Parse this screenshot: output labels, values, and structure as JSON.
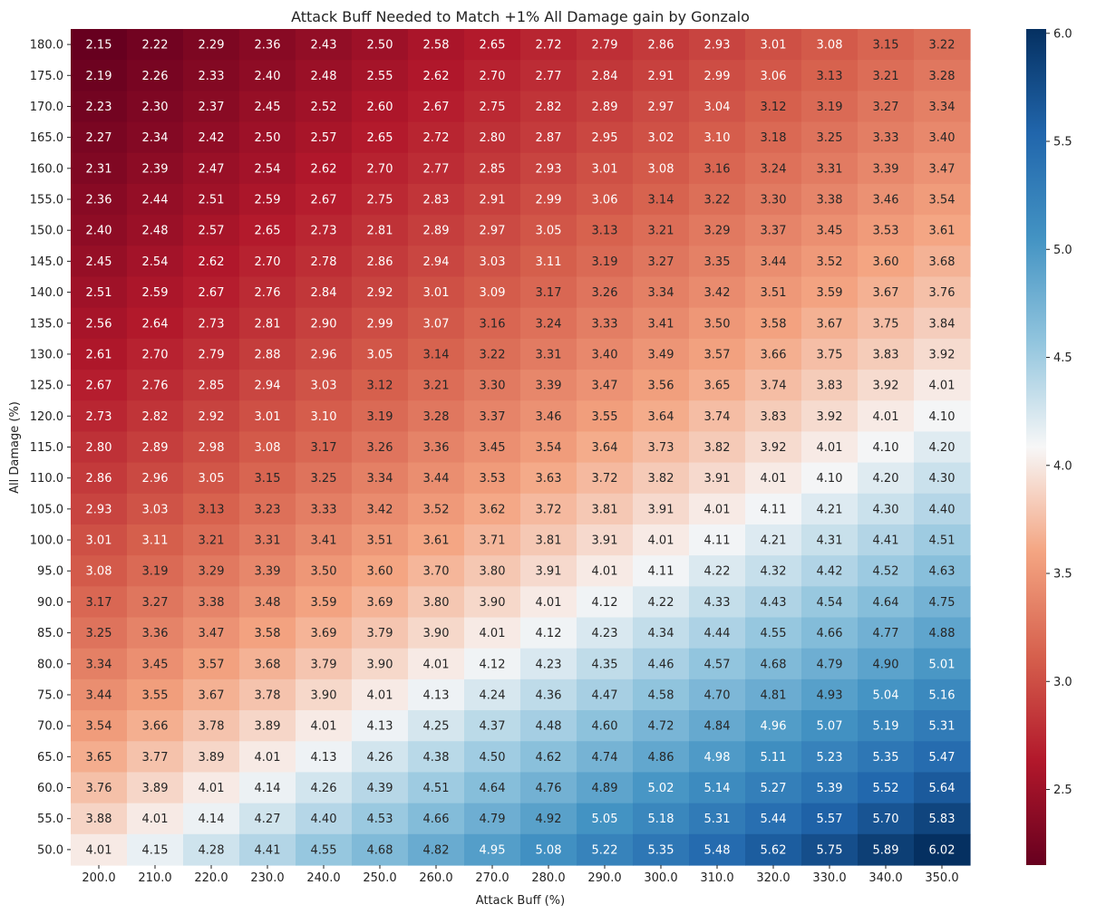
{
  "chart_data": {
    "type": "heatmap",
    "title": "Attack Buff Needed to Match +1% All Damage gain by Gonzalo",
    "xlabel": "Attack Buff (%)",
    "ylabel": "All Damage (%)",
    "x_categories": [
      "200.0",
      "210.0",
      "220.0",
      "230.0",
      "240.0",
      "250.0",
      "260.0",
      "270.0",
      "280.0",
      "290.0",
      "300.0",
      "310.0",
      "320.0",
      "330.0",
      "340.0",
      "350.0"
    ],
    "y_categories": [
      "180.0",
      "175.0",
      "170.0",
      "165.0",
      "160.0",
      "155.0",
      "150.0",
      "145.0",
      "140.0",
      "135.0",
      "130.0",
      "125.0",
      "120.0",
      "115.0",
      "110.0",
      "105.0",
      "100.0",
      "95.0",
      "90.0",
      "85.0",
      "80.0",
      "75.0",
      "70.0",
      "65.0",
      "60.0",
      "55.0",
      "50.0"
    ],
    "values": [
      [
        2.15,
        2.22,
        2.29,
        2.36,
        2.43,
        2.5,
        2.58,
        2.65,
        2.72,
        2.79,
        2.86,
        2.93,
        3.01,
        3.08,
        3.15,
        3.22
      ],
      [
        2.19,
        2.26,
        2.33,
        2.4,
        2.48,
        2.55,
        2.62,
        2.7,
        2.77,
        2.84,
        2.91,
        2.99,
        3.06,
        3.13,
        3.21,
        3.28
      ],
      [
        2.23,
        2.3,
        2.37,
        2.45,
        2.52,
        2.6,
        2.67,
        2.75,
        2.82,
        2.89,
        2.97,
        3.04,
        3.12,
        3.19,
        3.27,
        3.34
      ],
      [
        2.27,
        2.34,
        2.42,
        2.5,
        2.57,
        2.65,
        2.72,
        2.8,
        2.87,
        2.95,
        3.02,
        3.1,
        3.18,
        3.25,
        3.33,
        3.4
      ],
      [
        2.31,
        2.39,
        2.47,
        2.54,
        2.62,
        2.7,
        2.77,
        2.85,
        2.93,
        3.01,
        3.08,
        3.16,
        3.24,
        3.31,
        3.39,
        3.47
      ],
      [
        2.36,
        2.44,
        2.51,
        2.59,
        2.67,
        2.75,
        2.83,
        2.91,
        2.99,
        3.06,
        3.14,
        3.22,
        3.3,
        3.38,
        3.46,
        3.54
      ],
      [
        2.4,
        2.48,
        2.57,
        2.65,
        2.73,
        2.81,
        2.89,
        2.97,
        3.05,
        3.13,
        3.21,
        3.29,
        3.37,
        3.45,
        3.53,
        3.61
      ],
      [
        2.45,
        2.54,
        2.62,
        2.7,
        2.78,
        2.86,
        2.94,
        3.03,
        3.11,
        3.19,
        3.27,
        3.35,
        3.44,
        3.52,
        3.6,
        3.68
      ],
      [
        2.51,
        2.59,
        2.67,
        2.76,
        2.84,
        2.92,
        3.01,
        3.09,
        3.17,
        3.26,
        3.34,
        3.42,
        3.51,
        3.59,
        3.67,
        3.76
      ],
      [
        2.56,
        2.64,
        2.73,
        2.81,
        2.9,
        2.99,
        3.07,
        3.16,
        3.24,
        3.33,
        3.41,
        3.5,
        3.58,
        3.67,
        3.75,
        3.84
      ],
      [
        2.61,
        2.7,
        2.79,
        2.88,
        2.96,
        3.05,
        3.14,
        3.22,
        3.31,
        3.4,
        3.49,
        3.57,
        3.66,
        3.75,
        3.83,
        3.92
      ],
      [
        2.67,
        2.76,
        2.85,
        2.94,
        3.03,
        3.12,
        3.21,
        3.3,
        3.39,
        3.47,
        3.56,
        3.65,
        3.74,
        3.83,
        3.92,
        4.01
      ],
      [
        2.73,
        2.82,
        2.92,
        3.01,
        3.1,
        3.19,
        3.28,
        3.37,
        3.46,
        3.55,
        3.64,
        3.74,
        3.83,
        3.92,
        4.01,
        4.1
      ],
      [
        2.8,
        2.89,
        2.98,
        3.08,
        3.17,
        3.26,
        3.36,
        3.45,
        3.54,
        3.64,
        3.73,
        3.82,
        3.92,
        4.01,
        4.1,
        4.2
      ],
      [
        2.86,
        2.96,
        3.05,
        3.15,
        3.25,
        3.34,
        3.44,
        3.53,
        3.63,
        3.72,
        3.82,
        3.91,
        4.01,
        4.1,
        4.2,
        4.3
      ],
      [
        2.93,
        3.03,
        3.13,
        3.23,
        3.33,
        3.42,
        3.52,
        3.62,
        3.72,
        3.81,
        3.91,
        4.01,
        4.11,
        4.21,
        4.3,
        4.4
      ],
      [
        3.01,
        3.11,
        3.21,
        3.31,
        3.41,
        3.51,
        3.61,
        3.71,
        3.81,
        3.91,
        4.01,
        4.11,
        4.21,
        4.31,
        4.41,
        4.51
      ],
      [
        3.08,
        3.19,
        3.29,
        3.39,
        3.5,
        3.6,
        3.7,
        3.8,
        3.91,
        4.01,
        4.11,
        4.22,
        4.32,
        4.42,
        4.52,
        4.63
      ],
      [
        3.17,
        3.27,
        3.38,
        3.48,
        3.59,
        3.69,
        3.8,
        3.9,
        4.01,
        4.12,
        4.22,
        4.33,
        4.43,
        4.54,
        4.64,
        4.75
      ],
      [
        3.25,
        3.36,
        3.47,
        3.58,
        3.69,
        3.79,
        3.9,
        4.01,
        4.12,
        4.23,
        4.34,
        4.44,
        4.55,
        4.66,
        4.77,
        4.88
      ],
      [
        3.34,
        3.45,
        3.57,
        3.68,
        3.79,
        3.9,
        4.01,
        4.12,
        4.23,
        4.35,
        4.46,
        4.57,
        4.68,
        4.79,
        4.9,
        5.01
      ],
      [
        3.44,
        3.55,
        3.67,
        3.78,
        3.9,
        4.01,
        4.13,
        4.24,
        4.36,
        4.47,
        4.58,
        4.7,
        4.81,
        4.93,
        5.04,
        5.16
      ],
      [
        3.54,
        3.66,
        3.78,
        3.89,
        4.01,
        4.13,
        4.25,
        4.37,
        4.48,
        4.6,
        4.72,
        4.84,
        4.96,
        5.07,
        5.19,
        5.31
      ],
      [
        3.65,
        3.77,
        3.89,
        4.01,
        4.13,
        4.26,
        4.38,
        4.5,
        4.62,
        4.74,
        4.86,
        4.98,
        5.11,
        5.23,
        5.35,
        5.47
      ],
      [
        3.76,
        3.89,
        4.01,
        4.14,
        4.26,
        4.39,
        4.51,
        4.64,
        4.76,
        4.89,
        5.02,
        5.14,
        5.27,
        5.39,
        5.52,
        5.64
      ],
      [
        3.88,
        4.01,
        4.14,
        4.27,
        4.4,
        4.53,
        4.66,
        4.79,
        4.92,
        5.05,
        5.18,
        5.31,
        5.44,
        5.57,
        5.7,
        5.83
      ],
      [
        4.01,
        4.15,
        4.28,
        4.41,
        4.55,
        4.68,
        4.82,
        4.95,
        5.08,
        5.22,
        5.35,
        5.48,
        5.62,
        5.75,
        5.89,
        6.02
      ]
    ],
    "colorscale": "RdBu",
    "vmin": 2.15,
    "vmax": 6.02,
    "colorbar_ticks": [
      "2.5",
      "3.0",
      "3.5",
      "4.0",
      "4.5",
      "5.0",
      "5.5",
      "6.0"
    ],
    "annotations": "cell values shown with 2 decimals",
    "grid": false,
    "legend": "colorbar right"
  }
}
